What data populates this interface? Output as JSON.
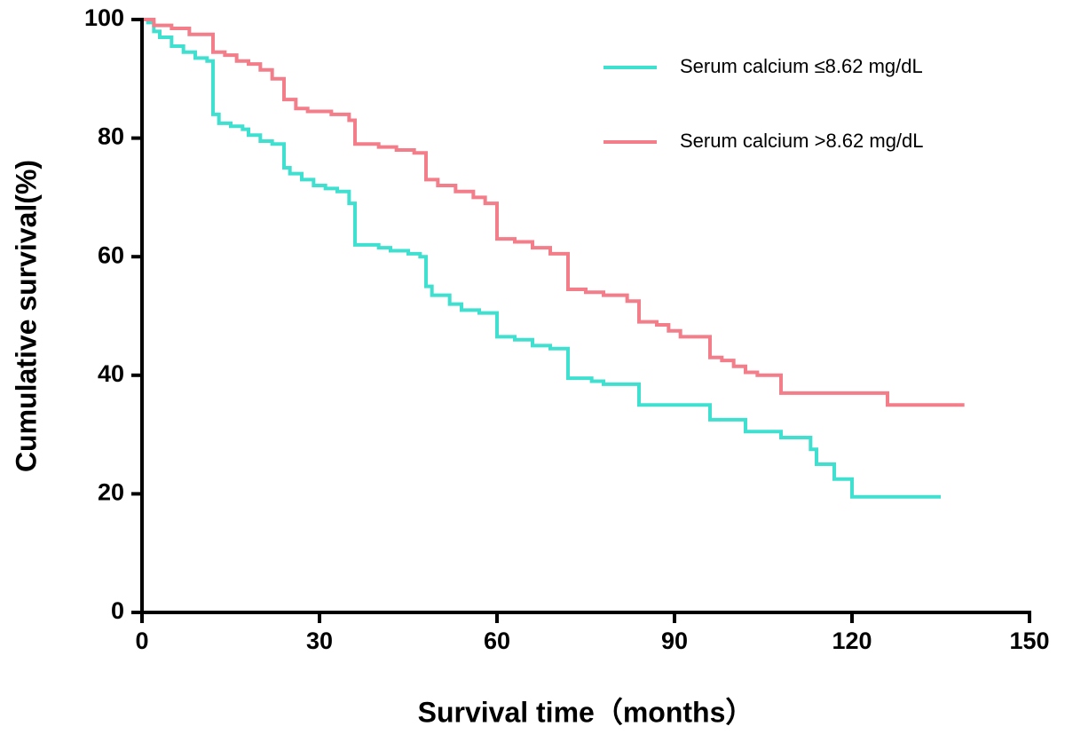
{
  "chart_data": {
    "type": "step",
    "xlabel": "Survival time（months）",
    "ylabel": "Cumulative survival(%)",
    "xlim": [
      0,
      150
    ],
    "xticks": [
      0,
      30,
      60,
      90,
      120,
      150
    ],
    "ylim": [
      0,
      100
    ],
    "yticks": [
      0,
      20,
      40,
      60,
      80,
      100
    ],
    "legend": "upper right",
    "series": [
      {
        "name": "Serum calcium ≤8.62 mg/dL",
        "color": "#3fe0d0",
        "x": [
          0,
          1,
          2,
          3,
          5,
          7,
          9,
          11,
          12,
          13,
          15,
          17,
          18,
          20,
          22,
          24,
          25,
          27,
          29,
          31,
          33,
          35,
          36,
          40,
          42,
          45,
          47,
          48,
          49,
          52,
          54,
          57,
          60,
          63,
          66,
          69,
          72,
          76,
          78,
          84,
          96,
          102,
          108,
          113,
          114,
          117,
          120,
          135
        ],
        "values": [
          100,
          99.5,
          98,
          97,
          95.5,
          94.5,
          93.5,
          93,
          84,
          82.5,
          82,
          81.5,
          80.5,
          79.5,
          79,
          75,
          74,
          73,
          72,
          71.5,
          71,
          69,
          62,
          61.5,
          61,
          60.5,
          60,
          55,
          53.5,
          52,
          51,
          50.5,
          46.5,
          46,
          45,
          44.5,
          39.5,
          39,
          38.5,
          35,
          32.5,
          30.5,
          29.5,
          27.5,
          25,
          22.5,
          19.5,
          19.5
        ]
      },
      {
        "name": "Serum calcium >8.62 mg/dL",
        "color": "#f47d8a",
        "x": [
          0,
          2,
          5,
          8,
          12,
          14,
          16,
          18,
          20,
          22,
          24,
          26,
          28,
          32,
          35,
          36,
          40,
          43,
          46,
          48,
          50,
          53,
          56,
          58,
          60,
          63,
          66,
          69,
          72,
          75,
          78,
          82,
          84,
          87,
          89,
          91,
          96,
          98,
          100,
          102,
          104,
          108,
          126,
          139
        ],
        "values": [
          100,
          99,
          98.5,
          97.5,
          94.5,
          94,
          93,
          92.5,
          91.5,
          90,
          86.5,
          85,
          84.5,
          84,
          83,
          79,
          78.5,
          78,
          77.5,
          73,
          72,
          71,
          70,
          69,
          63,
          62.5,
          61.5,
          60.5,
          54.5,
          54,
          53.5,
          52.5,
          49,
          48.5,
          47.5,
          46.5,
          43,
          42.5,
          41.5,
          40.5,
          40,
          37,
          35,
          35
        ]
      }
    ]
  }
}
